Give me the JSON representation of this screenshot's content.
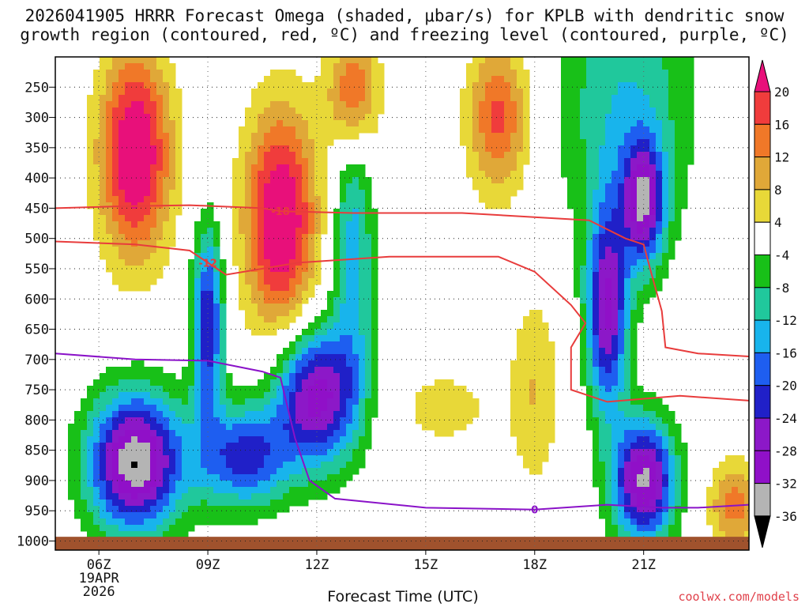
{
  "title_line1": "2026041905 HRRR Forecast Omega (shaded, μbar/s) for KPLB with dendritic snow",
  "title_line2": "growth region (contoured, red, ºC) and freezing level (contoured, purple, ºC)",
  "xlabel": "Forecast Time (UTC)",
  "credit": "coolwx.com/models",
  "chart_data": {
    "type": "heatmap",
    "x_range_hours": [
      4.8,
      23.9
    ],
    "y_range_hPa": [
      1015,
      200
    ],
    "y_ticks": [
      250,
      300,
      350,
      400,
      450,
      500,
      550,
      600,
      650,
      700,
      750,
      800,
      850,
      900,
      950,
      1000
    ],
    "x_ticks": [
      {
        "hour": 6,
        "label": "06Z",
        "sub1": "19APR",
        "sub2": "2026"
      },
      {
        "hour": 9,
        "label": "09Z"
      },
      {
        "hour": 12,
        "label": "12Z"
      },
      {
        "hour": 15,
        "label": "15Z"
      },
      {
        "hour": 18,
        "label": "18Z"
      },
      {
        "hour": 21,
        "label": "21Z"
      }
    ],
    "surface_pressure_hPa": 993,
    "colorbar": {
      "labels": [
        "20",
        "16",
        "12",
        "8",
        "4",
        "-4",
        "-8",
        "-12",
        "-16",
        "-20",
        "-24",
        "-28",
        "-32",
        "-36"
      ],
      "levels": [
        20,
        16,
        12,
        8,
        4,
        -4,
        -8,
        -12,
        -16,
        -20,
        -24,
        -28,
        -32,
        -36
      ],
      "colors": [
        "#e8107a",
        "#f03c3c",
        "#f07828",
        "#e0a838",
        "#e8d838",
        "#ffffff",
        "#18c018",
        "#20c89c",
        "#18b4ec",
        "#1e5ef0",
        "#2020c8",
        "#8c18c8",
        "#9010c8",
        "#b4b4b4"
      ],
      "top_color": "#e8107a",
      "bottom_color": "#000000"
    },
    "omega_cells": [
      {
        "hour": 7.0,
        "p": 360,
        "value": 26,
        "spread_h": 0.7,
        "spread_p": 120
      },
      {
        "hour": 11.0,
        "p": 470,
        "value": 26,
        "spread_h": 0.7,
        "spread_p": 130
      },
      {
        "hour": 13.0,
        "p": 260,
        "value": 18,
        "spread_h": 0.5,
        "spread_p": 70
      },
      {
        "hour": 17.0,
        "p": 300,
        "value": 17,
        "spread_h": 0.6,
        "spread_p": 90
      },
      {
        "hour": 7.0,
        "p": 870,
        "value": -36,
        "spread_h": 0.9,
        "spread_p": 80
      },
      {
        "hour": 9.0,
        "p": 640,
        "value": -24,
        "spread_h": 0.3,
        "spread_p": 110
      },
      {
        "hour": 12.0,
        "p": 760,
        "value": -30,
        "spread_h": 0.8,
        "spread_p": 80
      },
      {
        "hour": 10.0,
        "p": 860,
        "value": -22,
        "spread_h": 0.9,
        "spread_p": 60
      },
      {
        "hour": 13.0,
        "p": 520,
        "value": -14,
        "spread_h": 0.4,
        "spread_p": 160
      },
      {
        "hour": 20.0,
        "p": 620,
        "value": -28,
        "spread_h": 0.4,
        "spread_p": 120
      },
      {
        "hour": 21.0,
        "p": 440,
        "value": -28,
        "spread_h": 0.4,
        "spread_p": 70
      },
      {
        "hour": 21.0,
        "p": 900,
        "value": -33,
        "spread_h": 0.6,
        "spread_p": 70
      },
      {
        "hour": 20.5,
        "p": 280,
        "value": -12,
        "spread_h": 1.3,
        "spread_p": 170
      },
      {
        "hour": 18.0,
        "p": 750,
        "value": 8,
        "spread_h": 0.5,
        "spread_p": 120
      },
      {
        "hour": 15.5,
        "p": 780,
        "value": 6,
        "spread_h": 1.0,
        "spread_p": 50
      },
      {
        "hour": 23.5,
        "p": 940,
        "value": 14,
        "spread_h": 0.5,
        "spread_p": 50
      }
    ],
    "dgz_contours": [
      {
        "label": "-18",
        "label_hour": 11.0,
        "points": [
          [
            4.8,
            450
          ],
          [
            6.5,
            447
          ],
          [
            8.5,
            445
          ],
          [
            10.5,
            450
          ],
          [
            11.0,
            455
          ],
          [
            13.0,
            458
          ],
          [
            16.0,
            458
          ],
          [
            19.5,
            470
          ],
          [
            20.5,
            500
          ],
          [
            21.0,
            510
          ],
          [
            21.2,
            555
          ],
          [
            21.5,
            620
          ],
          [
            21.6,
            680
          ],
          [
            22.5,
            690
          ],
          [
            23.9,
            695
          ]
        ]
      },
      {
        "label": "-12",
        "label_hour": 9.0,
        "points": [
          [
            4.8,
            505
          ],
          [
            7.0,
            510
          ],
          [
            8.5,
            520
          ],
          [
            9.5,
            560
          ],
          [
            11.5,
            540
          ],
          [
            14.0,
            530
          ],
          [
            17.0,
            530
          ],
          [
            18.0,
            555
          ],
          [
            19.0,
            610
          ],
          [
            19.4,
            640
          ],
          [
            19.0,
            680
          ],
          [
            19.0,
            750
          ],
          [
            20.0,
            770
          ],
          [
            22.0,
            760
          ],
          [
            23.9,
            768
          ]
        ]
      }
    ],
    "freezing_contour": {
      "label": "0",
      "label_hour": 18.0,
      "points": [
        [
          4.8,
          690
        ],
        [
          7.0,
          700
        ],
        [
          9.0,
          702
        ],
        [
          10.5,
          720
        ],
        [
          11.0,
          730
        ],
        [
          11.4,
          830
        ],
        [
          11.8,
          900
        ],
        [
          12.5,
          930
        ],
        [
          15.0,
          945
        ],
        [
          18.0,
          948
        ],
        [
          20.0,
          940
        ],
        [
          21.5,
          945
        ],
        [
          22.5,
          945
        ],
        [
          23.9,
          940
        ]
      ]
    }
  }
}
